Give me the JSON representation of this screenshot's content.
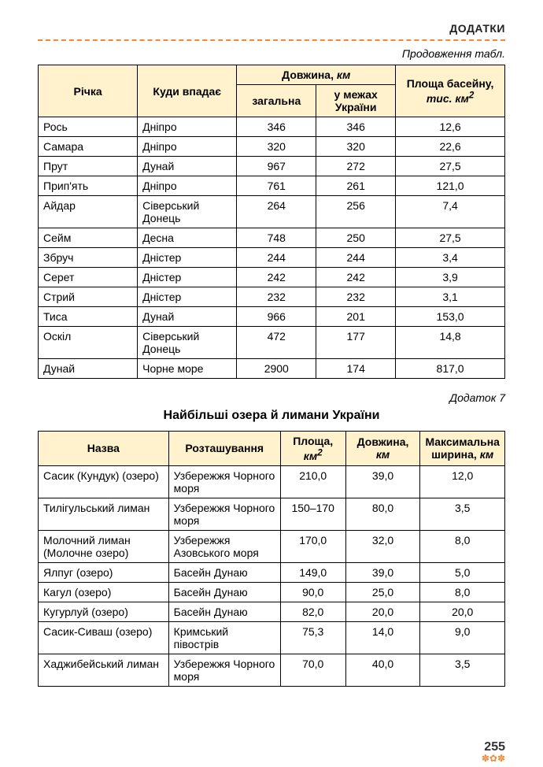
{
  "header": {
    "section_label": "ДОДАТКИ",
    "continuation_label": "Продовження табл."
  },
  "rivers_table": {
    "columns": {
      "river": "Річка",
      "flows_into": "Куди впадає",
      "length_group": "Довжина, ",
      "length_unit": "км",
      "length_total": "загальна",
      "length_ukraine": "у межах України",
      "basin_area": "Площа басейну, ",
      "basin_area_unit": "тис. км",
      "basin_area_sup": "2"
    },
    "rows": [
      {
        "river": "Рось",
        "flows_into": "Дніпро",
        "total": "346",
        "ukraine": "346",
        "area": "12,6"
      },
      {
        "river": "Самара",
        "flows_into": "Дніпро",
        "total": "320",
        "ukraine": "320",
        "area": "22,6"
      },
      {
        "river": "Прут",
        "flows_into": "Дунай",
        "total": "967",
        "ukraine": "272",
        "area": "27,5"
      },
      {
        "river": "Прип'ять",
        "flows_into": "Дніпро",
        "total": "761",
        "ukraine": "261",
        "area": "121,0"
      },
      {
        "river": "Айдар",
        "flows_into": "Сіверський Донець",
        "total": "264",
        "ukraine": "256",
        "area": "7,4"
      },
      {
        "river": "Сейм",
        "flows_into": "Десна",
        "total": "748",
        "ukraine": "250",
        "area": "27,5"
      },
      {
        "river": "Збруч",
        "flows_into": "Дністер",
        "total": "244",
        "ukraine": "244",
        "area": "3,4"
      },
      {
        "river": "Серет",
        "flows_into": "Дністер",
        "total": "242",
        "ukraine": "242",
        "area": "3,9"
      },
      {
        "river": "Стрий",
        "flows_into": "Дністер",
        "total": "232",
        "ukraine": "232",
        "area": "3,1"
      },
      {
        "river": "Тиса",
        "flows_into": "Дунай",
        "total": "966",
        "ukraine": "201",
        "area": "153,0"
      },
      {
        "river": "Оскіл",
        "flows_into": "Сіверський Донець",
        "total": "472",
        "ukraine": "177",
        "area": "14,8"
      },
      {
        "river": "Дунай",
        "flows_into": "Чорне море",
        "total": "2900",
        "ukraine": "174",
        "area": "817,0"
      }
    ]
  },
  "appendix": {
    "label": "Додаток 7"
  },
  "lakes_title": "Найбільші озера й лимани України",
  "lakes_table": {
    "columns": {
      "name": "Назва",
      "location": "Розташування",
      "area": "Площа, ",
      "area_unit": "км",
      "area_sup": "2",
      "length": "Довжина, ",
      "length_unit": "км",
      "max_width": "Максимальна ширина, ",
      "max_width_unit": "км"
    },
    "rows": [
      {
        "name": "Сасик (Кундук) (озеро)",
        "location": "Узбережжя Чорного моря",
        "area": "210,0",
        "length": "39,0",
        "width": "12,0"
      },
      {
        "name": "Тилігульський лиман",
        "location": "Узбережжя Чорного моря",
        "area": "150–170",
        "length": "80,0",
        "width": "3,5"
      },
      {
        "name": "Молочний лиман (Молочне озеро)",
        "location": "Узбережжя Азовського моря",
        "area": "170,0",
        "length": "32,0",
        "width": "8,0"
      },
      {
        "name": "Ялпуг (озеро)",
        "location": "Басейн Дунаю",
        "area": "149,0",
        "length": "39,0",
        "width": "5,0"
      },
      {
        "name": "Кагул (озеро)",
        "location": "Басейн Дунаю",
        "area": "90,0",
        "length": "25,0",
        "width": "8,0"
      },
      {
        "name": "Кугурлуй (озеро)",
        "location": "Басейн Дунаю",
        "area": "82,0",
        "length": "20,0",
        "width": "20,0"
      },
      {
        "name": "Сасик-Сиваш (озеро)",
        "location": "Кримський півострів",
        "area": "75,3",
        "length": "14,0",
        "width": "9,0"
      },
      {
        "name": "Хаджибейський лиман",
        "location": "Узбережжя Чорного моря",
        "area": "70,0",
        "length": "40,0",
        "width": "3,5"
      }
    ]
  },
  "page_number": "255"
}
